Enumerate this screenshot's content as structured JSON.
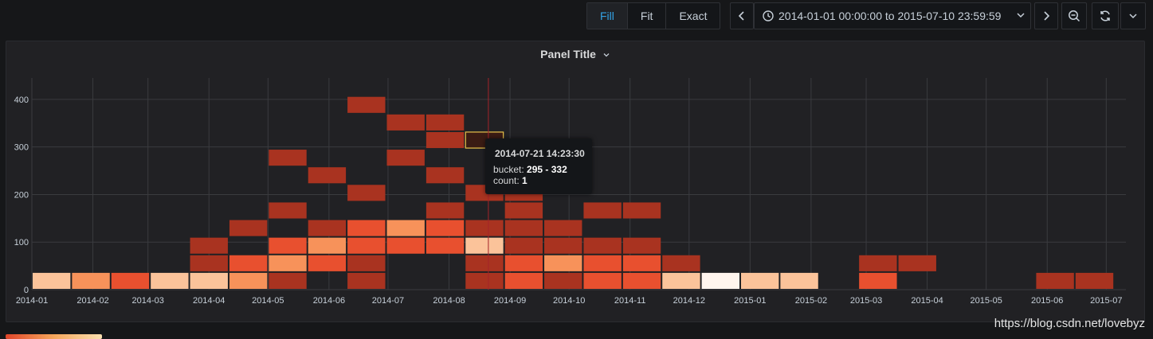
{
  "toolbar": {
    "mode_options": [
      "Fill",
      "Fit",
      "Exact"
    ],
    "active_mode": "Fill",
    "time_range": "2014-01-01 00:00:00 to 2015-07-10 23:59:59",
    "icons": [
      "chevron-left-icon",
      "clock-icon",
      "chevron-down-icon",
      "chevron-right-icon",
      "zoom-out-icon",
      "refresh-icon",
      "chevron-down-icon"
    ]
  },
  "panel": {
    "title": "Panel Title"
  },
  "tooltip": {
    "time": "2014-07-21 14:23:30",
    "bucket_label": "bucket: ",
    "bucket_value": "295 - 332",
    "count_label": "count: ",
    "count_value": "1"
  },
  "watermark": "https://blog.csdn.net/lovebyz",
  "chart_data": {
    "type": "heatmap",
    "title": "Panel Title",
    "x_ticks": [
      "2014-01",
      "2014-02",
      "2014-03",
      "2014-04",
      "2014-05",
      "2014-06",
      "2014-07",
      "2014-08",
      "2014-09",
      "2014-10",
      "2014-11",
      "2014-12",
      "2015-01",
      "2015-02",
      "2015-03",
      "2015-04",
      "2015-05",
      "2015-06",
      "2015-07"
    ],
    "x_tick_dates": [
      "2014-01-01",
      "2014-02-01",
      "2014-03-01",
      "2014-04-01",
      "2014-05-01",
      "2014-06-01",
      "2014-07-01",
      "2014-08-01",
      "2014-09-01",
      "2014-10-01",
      "2014-11-01",
      "2014-12-01",
      "2015-01-01",
      "2015-02-01",
      "2015-03-01",
      "2015-04-01",
      "2015-05-01",
      "2015-06-01",
      "2015-07-01"
    ],
    "x_range": [
      "2014-01-01",
      "2015-07-10"
    ],
    "y_ticks": [
      0,
      100,
      200,
      300,
      400
    ],
    "y_range": [
      0,
      445
    ],
    "grid": true,
    "bucket_width_days": 20,
    "bucket_height": 37,
    "color_scale": [
      "#a93320",
      "#e8502f",
      "#f7925a",
      "#fbc39a",
      "#fff5ee"
    ],
    "cells": [
      {
        "x": "2014-01-01",
        "y0": 0,
        "y1": 37,
        "level": 3
      },
      {
        "x": "2014-01-21",
        "y0": 0,
        "y1": 37,
        "level": 2
      },
      {
        "x": "2014-02-10",
        "y0": 0,
        "y1": 37,
        "level": 1
      },
      {
        "x": "2014-03-02",
        "y0": 0,
        "y1": 37,
        "level": 3
      },
      {
        "x": "2014-03-22",
        "y0": 0,
        "y1": 37,
        "level": 3
      },
      {
        "x": "2014-03-22",
        "y0": 37,
        "y1": 74,
        "level": 0
      },
      {
        "x": "2014-03-22",
        "y0": 74,
        "y1": 111,
        "level": 0
      },
      {
        "x": "2014-04-11",
        "y0": 0,
        "y1": 37,
        "level": 2
      },
      {
        "x": "2014-04-11",
        "y0": 37,
        "y1": 74,
        "level": 1
      },
      {
        "x": "2014-04-11",
        "y0": 111,
        "y1": 148,
        "level": 0
      },
      {
        "x": "2014-05-01",
        "y0": 0,
        "y1": 37,
        "level": 0
      },
      {
        "x": "2014-05-01",
        "y0": 37,
        "y1": 74,
        "level": 2
      },
      {
        "x": "2014-05-01",
        "y0": 74,
        "y1": 111,
        "level": 1
      },
      {
        "x": "2014-05-01",
        "y0": 148,
        "y1": 185,
        "level": 0
      },
      {
        "x": "2014-05-01",
        "y0": 259,
        "y1": 296,
        "level": 0
      },
      {
        "x": "2014-05-21",
        "y0": 37,
        "y1": 74,
        "level": 1
      },
      {
        "x": "2014-05-21",
        "y0": 74,
        "y1": 111,
        "level": 2
      },
      {
        "x": "2014-05-21",
        "y0": 111,
        "y1": 148,
        "level": 0
      },
      {
        "x": "2014-05-21",
        "y0": 222,
        "y1": 259,
        "level": 0
      },
      {
        "x": "2014-06-10",
        "y0": 0,
        "y1": 37,
        "level": 0
      },
      {
        "x": "2014-06-10",
        "y0": 37,
        "y1": 74,
        "level": 0
      },
      {
        "x": "2014-06-10",
        "y0": 74,
        "y1": 111,
        "level": 1
      },
      {
        "x": "2014-06-10",
        "y0": 111,
        "y1": 148,
        "level": 1
      },
      {
        "x": "2014-06-10",
        "y0": 185,
        "y1": 222,
        "level": 0
      },
      {
        "x": "2014-06-10",
        "y0": 370,
        "y1": 407,
        "level": 0
      },
      {
        "x": "2014-06-30",
        "y0": 74,
        "y1": 111,
        "level": 1
      },
      {
        "x": "2014-06-30",
        "y0": 111,
        "y1": 148,
        "level": 2
      },
      {
        "x": "2014-06-30",
        "y0": 259,
        "y1": 296,
        "level": 0
      },
      {
        "x": "2014-06-30",
        "y0": 333,
        "y1": 370,
        "level": 0
      },
      {
        "x": "2014-07-20",
        "y0": 74,
        "y1": 111,
        "level": 1
      },
      {
        "x": "2014-07-20",
        "y0": 111,
        "y1": 148,
        "level": 1
      },
      {
        "x": "2014-07-20",
        "y0": 148,
        "y1": 185,
        "level": 0
      },
      {
        "x": "2014-07-20",
        "y0": 222,
        "y1": 259,
        "level": 0
      },
      {
        "x": "2014-07-20",
        "y0": 296,
        "y1": 333,
        "level": 0
      },
      {
        "x": "2014-07-20",
        "y0": 333,
        "y1": 370,
        "level": 0
      },
      {
        "x": "2014-08-09",
        "y0": 0,
        "y1": 37,
        "level": 0
      },
      {
        "x": "2014-08-09",
        "y0": 37,
        "y1": 74,
        "level": 0
      },
      {
        "x": "2014-08-09",
        "y0": 74,
        "y1": 111,
        "level": 3
      },
      {
        "x": "2014-08-09",
        "y0": 111,
        "y1": 148,
        "level": 0
      },
      {
        "x": "2014-08-09",
        "y0": 185,
        "y1": 222,
        "level": 0
      },
      {
        "x": "2014-08-09",
        "y0": 296,
        "y1": 333,
        "level": 0,
        "highlight": true
      },
      {
        "x": "2014-08-29",
        "y0": 0,
        "y1": 37,
        "level": 1
      },
      {
        "x": "2014-08-29",
        "y0": 37,
        "y1": 74,
        "level": 1
      },
      {
        "x": "2014-08-29",
        "y0": 74,
        "y1": 111,
        "level": 0
      },
      {
        "x": "2014-08-29",
        "y0": 111,
        "y1": 148,
        "level": 0
      },
      {
        "x": "2014-08-29",
        "y0": 148,
        "y1": 185,
        "level": 0
      },
      {
        "x": "2014-08-29",
        "y0": 185,
        "y1": 222,
        "level": 0
      },
      {
        "x": "2014-09-18",
        "y0": 0,
        "y1": 37,
        "level": 0
      },
      {
        "x": "2014-09-18",
        "y0": 37,
        "y1": 74,
        "level": 2
      },
      {
        "x": "2014-09-18",
        "y0": 74,
        "y1": 111,
        "level": 0
      },
      {
        "x": "2014-09-18",
        "y0": 111,
        "y1": 148,
        "level": 0
      },
      {
        "x": "2014-10-08",
        "y0": 0,
        "y1": 37,
        "level": 1
      },
      {
        "x": "2014-10-08",
        "y0": 37,
        "y1": 74,
        "level": 1
      },
      {
        "x": "2014-10-08",
        "y0": 74,
        "y1": 111,
        "level": 0
      },
      {
        "x": "2014-10-08",
        "y0": 148,
        "y1": 185,
        "level": 0
      },
      {
        "x": "2014-10-28",
        "y0": 0,
        "y1": 37,
        "level": 1
      },
      {
        "x": "2014-10-28",
        "y0": 37,
        "y1": 74,
        "level": 1
      },
      {
        "x": "2014-10-28",
        "y0": 74,
        "y1": 111,
        "level": 0
      },
      {
        "x": "2014-10-28",
        "y0": 148,
        "y1": 185,
        "level": 0
      },
      {
        "x": "2014-11-17",
        "y0": 0,
        "y1": 37,
        "level": 3
      },
      {
        "x": "2014-11-17",
        "y0": 37,
        "y1": 74,
        "level": 0
      },
      {
        "x": "2014-12-07",
        "y0": 0,
        "y1": 37,
        "level": 4
      },
      {
        "x": "2014-12-27",
        "y0": 0,
        "y1": 37,
        "level": 3
      },
      {
        "x": "2015-01-16",
        "y0": 0,
        "y1": 37,
        "level": 3
      },
      {
        "x": "2015-02-25",
        "y0": 0,
        "y1": 37,
        "level": 1
      },
      {
        "x": "2015-02-25",
        "y0": 37,
        "y1": 74,
        "level": 0
      },
      {
        "x": "2015-03-17",
        "y0": 37,
        "y1": 74,
        "level": 0
      },
      {
        "x": "2015-05-26",
        "y0": 0,
        "y1": 37,
        "level": 0
      },
      {
        "x": "2015-06-15",
        "y0": 0,
        "y1": 37,
        "level": 0
      }
    ],
    "crosshair_x": "2014-08-21"
  }
}
